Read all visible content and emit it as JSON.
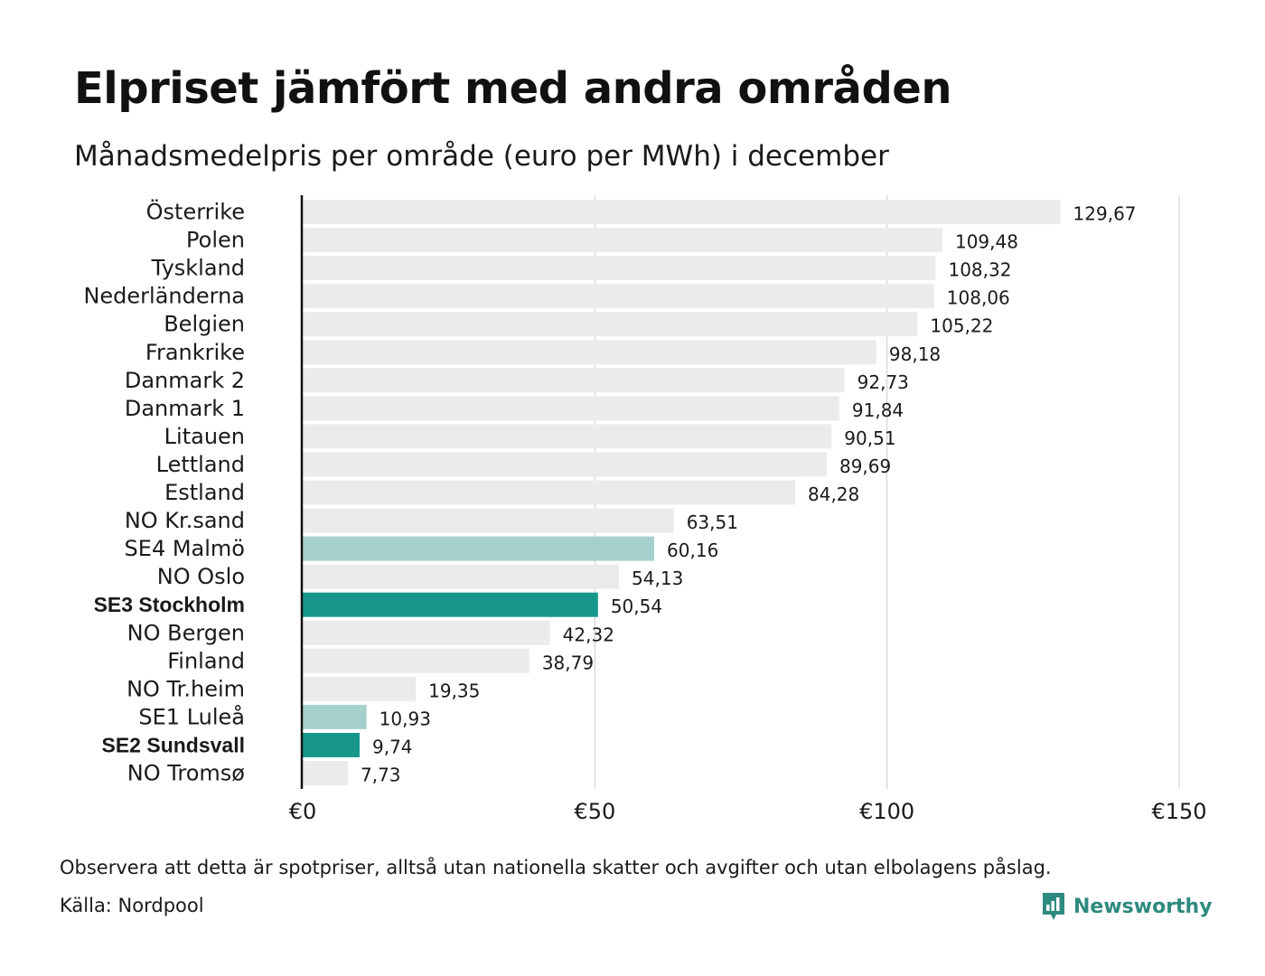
{
  "title": "Elpriset jämfört med andra områden",
  "subtitle": "Månadsmedelpris per område (euro per MWh) i december",
  "note": "Observera att detta är spotpriser, alltså utan nationella skatter och avgifter och utan elbolagens påslag.",
  "source": "Källa: Nordpool",
  "brand": {
    "name": "Newsworthy",
    "icon": "bar-chart-speech-bubble-icon",
    "color": "#2e8a7f"
  },
  "colors": {
    "default_bar": "#ebebeb",
    "light_highlight": "#a6d0cb",
    "dark_highlight": "#16978a",
    "grid": "#cccccc",
    "axis": "#111111"
  },
  "chart_data": {
    "type": "bar",
    "orientation": "horizontal",
    "categories": [
      "Österrike",
      "Polen",
      "Tyskland",
      "Nederländerna",
      "Belgien",
      "Frankrike",
      "Danmark  2",
      "Danmark  1",
      "Litauen",
      "Lettland",
      "Estland",
      "NO Kr.sand",
      "SE4  Malmö",
      "NO Oslo",
      "SE3 Stockholm",
      "NO Bergen",
      "Finland",
      "NO Tr.heim",
      "SE1  Luleå",
      "SE2 Sundsvall",
      "NO Tromsø"
    ],
    "values": [
      129.67,
      109.48,
      108.32,
      108.06,
      105.22,
      98.18,
      92.73,
      91.84,
      90.51,
      89.69,
      84.28,
      63.51,
      60.16,
      54.13,
      50.54,
      42.32,
      38.79,
      19.35,
      10.93,
      9.74,
      7.73
    ],
    "value_labels": [
      "129,67",
      "109,48",
      "108,32",
      "108,06",
      "105,22",
      "98,18",
      "92,73",
      "91,84",
      "90,51",
      "89,69",
      "84,28",
      "63,51",
      "60,16",
      "54,13",
      "50,54",
      "42,32",
      "38,79",
      "19,35",
      "10,93",
      "9,74",
      "7,73"
    ],
    "highlight": [
      "none",
      "none",
      "none",
      "none",
      "none",
      "none",
      "none",
      "none",
      "none",
      "none",
      "none",
      "none",
      "light",
      "none",
      "dark",
      "none",
      "none",
      "none",
      "light",
      "dark",
      "none"
    ],
    "bold_labels": [
      "SE3 Stockholm",
      "SE2 Sundsvall"
    ],
    "x_ticks": [
      0,
      50,
      100,
      150
    ],
    "x_tick_labels": [
      "€0",
      "€50",
      "€100",
      "€150"
    ],
    "xlim": [
      0,
      150
    ],
    "grid": true,
    "xlabel": "",
    "ylabel": ""
  }
}
